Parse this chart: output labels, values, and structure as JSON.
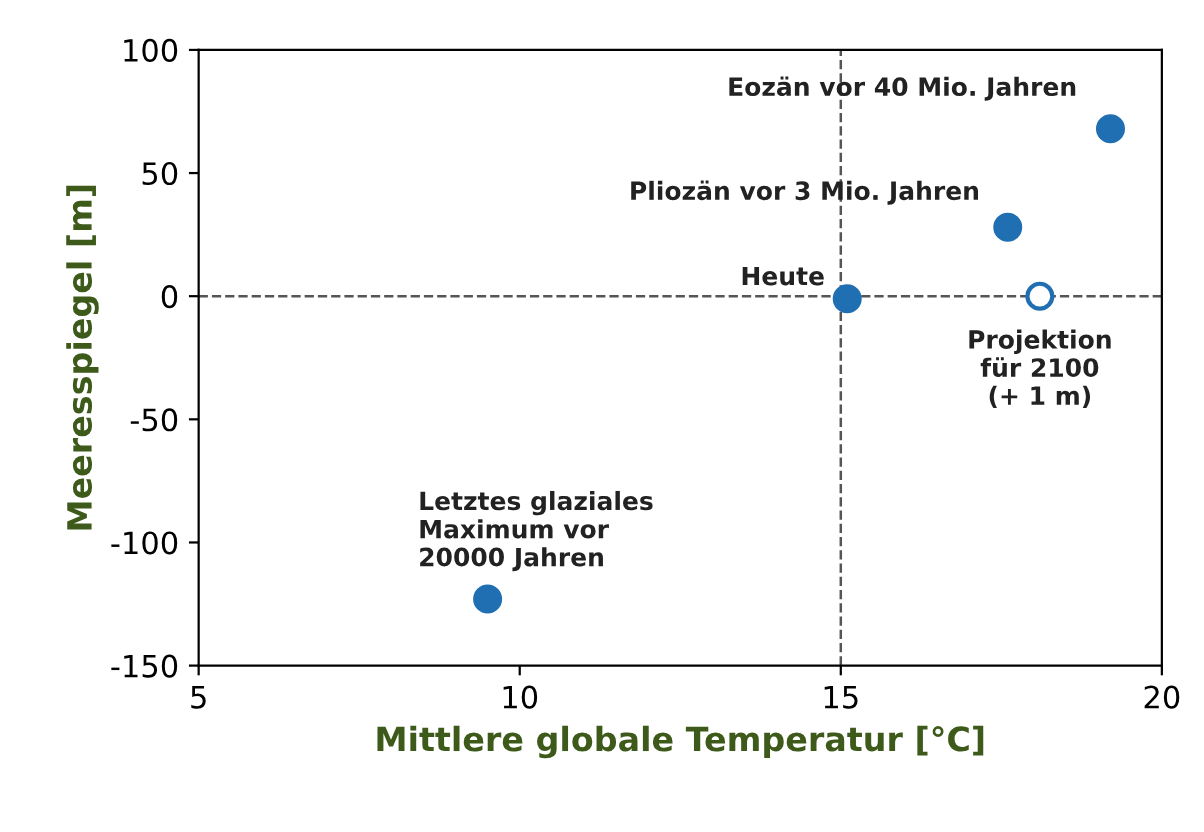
{
  "chart_data": {
    "type": "scatter",
    "xlabel": "Mittlere globale Temperatur [°C]",
    "ylabel": "Meeresspiegel [m]",
    "xlim": [
      5,
      20
    ],
    "ylim": [
      -150,
      100
    ],
    "xticks": [
      5,
      10,
      15,
      20
    ],
    "yticks": [
      -150,
      -100,
      -50,
      0,
      50,
      100
    ],
    "series": [
      {
        "color": "#1f6fb2",
        "x": [
          9.5,
          15.1,
          17.6,
          19.2
        ],
        "values": [
          -123,
          -1,
          28,
          68
        ]
      },
      {
        "color": "#1f6fb2",
        "x": [
          18.1
        ],
        "values": [
          0
        ]
      }
    ],
    "ref_lines": [
      {
        "axis": "x",
        "value": 15,
        "label": null,
        "line_style": "dashed"
      },
      {
        "axis": "y",
        "value": 0,
        "label": null,
        "line_style": "dashed"
      }
    ],
    "annotations": [
      {
        "text": "Letztes glaziales\nMaximum vor\n20000 Jahren",
        "x": 9.5,
        "y": -123
      },
      {
        "text": "Heute",
        "x": 15.1,
        "y": -1
      },
      {
        "text": "Pliozän vor 3 Mio. Jahren",
        "x": 17.6,
        "y": 28
      },
      {
        "text": "Eozän vor 40 Mio. Jahren",
        "x": 19.2,
        "y": 68
      },
      {
        "text": "Projektion\nfür 2100\n(+ 1 m)",
        "x": 18.1,
        "y": 0
      }
    ],
    "grid": false,
    "legend": false,
    "marker": "circle"
  }
}
